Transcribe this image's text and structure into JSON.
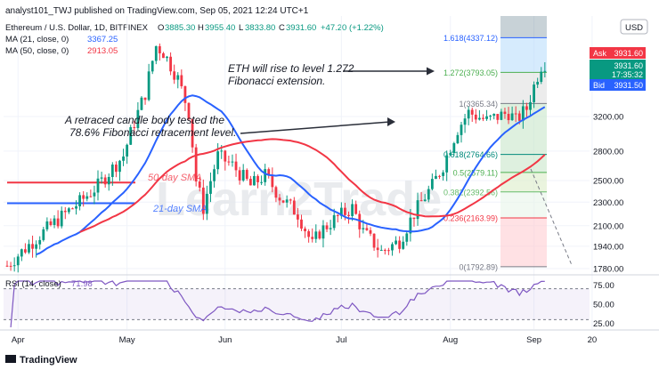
{
  "header": {
    "publisher": "analyst101_TWJ published on TradingView.com, Sep 05, 2021 12:24 UTC+1",
    "symbol": "Ethereum / U.S. Dollar, 1D, BITFINEX",
    "ohlc": {
      "o_label": "O",
      "o": "3885.30",
      "h_label": "H",
      "h": "3955.40",
      "l_label": "L",
      "l": "3833.80",
      "c_label": "C",
      "c": "3931.60",
      "change": "+47.20 (+1.22%)"
    },
    "ma21": {
      "label": "MA (21, close, 0)",
      "value": "3367.25",
      "color": "#2962ff"
    },
    "ma50": {
      "label": "MA (50, close, 0)",
      "value": "2913.05",
      "color": "#f23645"
    }
  },
  "currency": "USD",
  "price_tags": {
    "ask_label": "Ask",
    "ask": "3931.60",
    "last": "3931.60",
    "countdown": "17:35:32",
    "bid_label": "Bid",
    "bid": "3931.50"
  },
  "annotations": {
    "eth_rise": [
      "ETH will rise to level 1.272",
      "Fibonacci extension."
    ],
    "retraced": [
      "A retraced candle body tested the",
      "78.6% Fibonacci retracement level."
    ],
    "ma50_label": "50-day SMA",
    "ma21_label": "21-day SMA",
    "watermark": "Learn2Trade"
  },
  "fib_levels": [
    {
      "label": "1.618(4337.12)",
      "price": 4337.12,
      "color": "#2962ff"
    },
    {
      "label": "1.272(3793.05)",
      "price": 3793.05,
      "color": "#4caf50"
    },
    {
      "label": "1(3365.34)",
      "price": 3365.34,
      "color": "#787b86"
    },
    {
      "label": "0.618(2764.66)",
      "price": 2764.66,
      "color": "#00897b"
    },
    {
      "label": "0.5(2579.11)",
      "price": 2579.11,
      "color": "#4caf50"
    },
    {
      "label": "0.382(2392.56)",
      "price": 2392.56,
      "color": "#66bb6a"
    },
    {
      "label": "0.236(2163.99)",
      "price": 2163.99,
      "color": "#f23645"
    },
    {
      "label": "0(1792.89)",
      "price": 1792.89,
      "color": "#787b86"
    }
  ],
  "rsi": {
    "label": "RSI (14, close)",
    "value": "71.98",
    "color": "#7e57c2"
  },
  "footer": "TradingView",
  "chart_data": {
    "type": "candlestick",
    "x_ticks": [
      "Apr",
      "May",
      "Jun",
      "Jul",
      "Aug",
      "Sep",
      "20"
    ],
    "y_ticks": [
      "3200.00",
      "2800.00",
      "2500.00",
      "2300.00",
      "2100.00",
      "1940.00",
      "1780.00"
    ],
    "y_tick_values": [
      3200,
      2800,
      2500,
      2300,
      2100,
      1940,
      1780
    ],
    "y_scale": "log",
    "rsi_ticks": [
      "75.00",
      "50.00",
      "25.00"
    ],
    "rsi_tick_values": [
      75,
      50,
      25
    ],
    "rsi_bands": [
      30,
      70
    ],
    "grid": true,
    "series": [
      {
        "name": "MA (21, close, 0)"
      },
      {
        "name": "MA (50, close, 0)"
      }
    ]
  }
}
